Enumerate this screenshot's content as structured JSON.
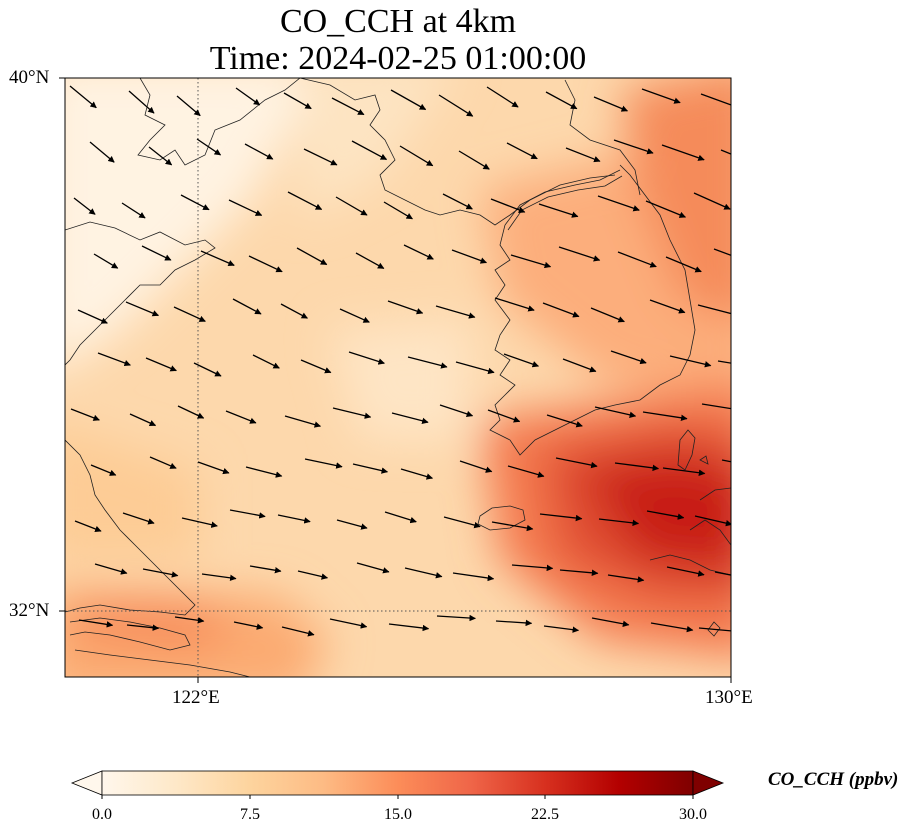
{
  "title": {
    "line1": "CO_CCH at 4km",
    "line2": "Time: 2024-02-25 01:00:00"
  },
  "axes": {
    "lat_labels": [
      "40°N",
      "32°N"
    ],
    "lon_labels": [
      "122°E",
      "130°E"
    ],
    "lon_range": [
      120,
      130
    ],
    "lat_range": [
      31,
      40
    ],
    "gridlines": {
      "lons": [
        122
      ],
      "lats": [
        32
      ],
      "style": "dotted"
    }
  },
  "colorbar": {
    "label": "CO_CCH (ppbv)",
    "ticks": [
      "0.0",
      "7.5",
      "15.0",
      "22.5",
      "30.0"
    ],
    "range": [
      0,
      30
    ],
    "colormap": "OrRd",
    "extend": "both",
    "stops": [
      "#fff7ec",
      "#fee8c8",
      "#fdd49e",
      "#fdbb84",
      "#fc8d59",
      "#ef6548",
      "#d7301f",
      "#b30000",
      "#7f0000"
    ]
  },
  "chart_data": {
    "type": "heatmap",
    "variable": "CO_CCH",
    "units": "ppbv",
    "level": "4km",
    "time": "2024-02-25 01:00:00",
    "lon_range": [
      120,
      130
    ],
    "lat_range": [
      31,
      40
    ],
    "value_range": [
      0,
      30
    ],
    "field_features": [
      {
        "name": "hotspot-south-of-korea",
        "lon": 128.0,
        "lat": 33.4,
        "value": 28
      },
      {
        "name": "hotspot-korea-east",
        "lon": 129.5,
        "lat": 37.0,
        "value": 18
      },
      {
        "name": "hotspot-yangtze-mouth",
        "lon": 121.0,
        "lat": 31.9,
        "value": 16
      },
      {
        "name": "background-north",
        "lon": 121.0,
        "lat": 39.5,
        "value": 1
      },
      {
        "name": "background-yellow-sea",
        "lon": 124.5,
        "lat": 35.0,
        "value": 5
      }
    ],
    "wind_vectors": "uniform grid, predominantly westerly to west-northwesterly flow"
  }
}
